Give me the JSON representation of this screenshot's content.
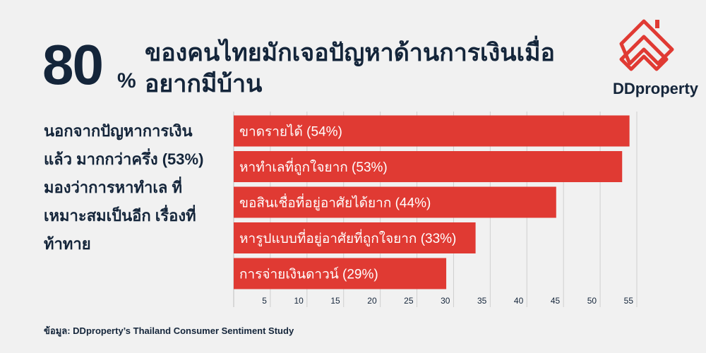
{
  "headline": {
    "number": "80",
    "percent": "%",
    "line1": "ของคนไทยมักเจอปัญหาด้านการเงินเมื่อ",
    "line2": "อยากมีบ้าน"
  },
  "side_text": "นอกจากปัญหาการเงิน แล้ว มากกว่าครึ่ง (53%) มองว่าการหาทำเล ที่เหมาะสมเป็นอีก เรื่องที่ท้าทาย",
  "brand": "DDproperty",
  "source": "ข้อมูล: DDproperty’s Thailand Consumer Sentiment Study",
  "colors": {
    "bar": "#e03a33",
    "text": "#14253a",
    "background": "#f1f1f1",
    "grid": "#cfcfcf"
  },
  "chart_data": {
    "type": "bar",
    "orientation": "horizontal",
    "categories": [
      "ขาดรายได้ (54%)",
      "หาทำเลที่ถูกใจยาก (53%)",
      "ขอสินเชื่อที่อยู่อาศัยได้ยาก (44%)",
      "หารูปแบบที่อยู่อาศัยที่ถูกใจยาก (33%)",
      "การจ่ายเงินดาวน์ (29%)"
    ],
    "values": [
      54,
      53,
      44,
      33,
      29
    ],
    "xlim": [
      0,
      55
    ],
    "xticks": [
      5,
      10,
      15,
      20,
      25,
      30,
      35,
      40,
      45,
      50,
      55
    ],
    "grid": true,
    "legend": "none"
  }
}
